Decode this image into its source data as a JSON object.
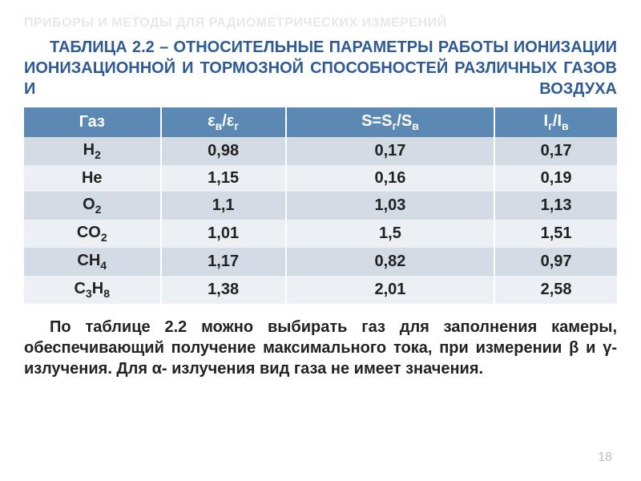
{
  "watermark": "ПРИБОРЫ И МЕТОДЫ ДЛЯ РАДИОМЕТРИЧЕСКИХ ИЗМЕРЕНИЙ",
  "table_title": "ТАБЛИЦА 2.2 – ОТНОСИТЕЛЬНЫЕ ПАРАМЕТРЫ РАБОТЫ ИОНИЗАЦИИ ИОНИЗАЦИОННОЙ И ТОРМОЗНОЙ СПОСОБНОСТЕЙ РАЗЛИЧНЫХ ГАЗОВ И ВОЗДУХА",
  "table": {
    "header_bg": "#5b89b4",
    "header_fg": "#ffffff",
    "row_odd_bg": "#d3dbe4",
    "row_even_bg": "#ecf0f4",
    "columns": [
      {
        "plain": "Газ",
        "html": "Газ"
      },
      {
        "plain": "εв/εг",
        "html": "ε<span class=\"sub\">в</span>/ε<span class=\"sub\">г</span>"
      },
      {
        "plain": "S=Sг/Sв",
        "html": "S=S<span class=\"sub\">г</span>/S<span class=\"sub\">в</span>"
      },
      {
        "plain": "Iг/Iв",
        "html": "I<span class=\"sub\">г</span>/I<span class=\"sub\">в</span>"
      }
    ],
    "rows": [
      {
        "gas_html": "H<span class=\"sub\">2</span>",
        "eps": "0,98",
        "s": "0,17",
        "i": "0,17"
      },
      {
        "gas_html": "He",
        "eps": "1,15",
        "s": "0,16",
        "i": "0,19"
      },
      {
        "gas_html": "O<span class=\"sub\">2</span>",
        "eps": "1,1",
        "s": "1,03",
        "i": "1,13"
      },
      {
        "gas_html": "CO<span class=\"sub\">2</span>",
        "eps": "1,01",
        "s": "1,5",
        "i": "1,51"
      },
      {
        "gas_html": "CH<span class=\"sub\">4</span>",
        "eps": "1,17",
        "s": "0,82",
        "i": "0,97"
      },
      {
        "gas_html": "C<span class=\"sub\">3</span>H<span class=\"sub\">8</span>",
        "eps": "1,38",
        "s": "2,01",
        "i": "2,58"
      }
    ]
  },
  "body_text": "По таблице 2.2 можно выбирать газ для заполнения камеры, обеспечивающий получение максимального тока, при измерении β и γ-излучения. Для α- излучения вид газа не имеет значения.",
  "page_number": "18",
  "colors": {
    "title": "#2e5b94",
    "text": "#222222",
    "watermark": "#e8e8e8",
    "page_num": "#bfbfbf"
  },
  "fonts": {
    "family": "Arial, sans-serif",
    "title_size_pt": 15,
    "body_size_pt": 15,
    "table_size_pt": 15
  }
}
